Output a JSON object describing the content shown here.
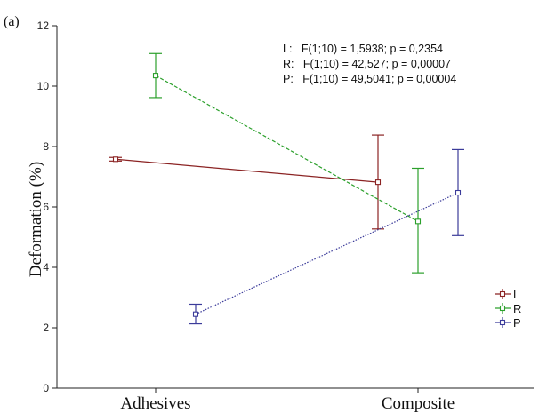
{
  "chart_data": {
    "type": "line",
    "panel_label": "(a)",
    "title": "",
    "xlabel": "",
    "ylabel": "Deformation (%)",
    "categories": [
      "Adhesives",
      "Composite"
    ],
    "ylim": [
      0,
      12
    ],
    "yticks": [
      0,
      2,
      4,
      6,
      8,
      10,
      12
    ],
    "grid": false,
    "legend_position": "right",
    "annotations": [
      "L:   F(1;10) = 1,5938; p = 0,2354",
      "R:   F(1;10) = 42,527; p = 0,00007",
      "P:   F(1;10) = 49,5041; p = 0,00004"
    ],
    "series": [
      {
        "name": "L",
        "color": "#8b2323",
        "dash": "solid",
        "values": [
          7.58,
          6.82
        ],
        "lower": [
          7.52,
          5.27
        ],
        "upper": [
          7.64,
          8.38
        ]
      },
      {
        "name": "R",
        "color": "#2ca02c",
        "dash": "dashed",
        "values": [
          10.35,
          5.52
        ],
        "lower": [
          9.62,
          3.82
        ],
        "upper": [
          11.08,
          7.28
        ]
      },
      {
        "name": "P",
        "color": "#3b3b9a",
        "dash": "dotted",
        "values": [
          2.45,
          6.47
        ],
        "lower": [
          2.13,
          5.05
        ],
        "upper": [
          2.78,
          7.9
        ]
      }
    ]
  }
}
